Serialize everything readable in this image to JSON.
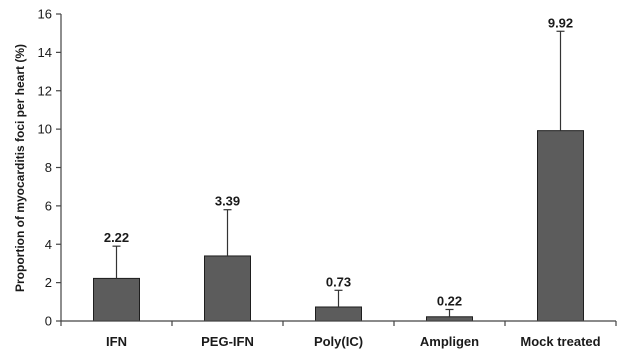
{
  "chart_data": {
    "type": "bar",
    "title": "",
    "xlabel": "",
    "ylabel": "Proportion of myocarditis foci per heart (%)",
    "ylim": [
      0,
      16
    ],
    "yticks": [
      0,
      2,
      4,
      6,
      8,
      10,
      12,
      14,
      16
    ],
    "categories": [
      "IFN",
      "PEG-IFN",
      "Poly(IC)",
      "Ampligen",
      "Mock treated"
    ],
    "values": [
      2.22,
      3.39,
      0.73,
      0.22,
      9.92
    ],
    "error_upper": [
      3.9,
      5.8,
      1.6,
      0.6,
      15.1
    ],
    "data_labels": [
      "2.22",
      "3.39",
      "0.73",
      "0.22",
      "9.92"
    ],
    "grid": false,
    "legend": "none",
    "colors": {
      "bar": "#5c5c5c",
      "bar_edge": "#1e1e1e",
      "axis": "#444444"
    }
  }
}
